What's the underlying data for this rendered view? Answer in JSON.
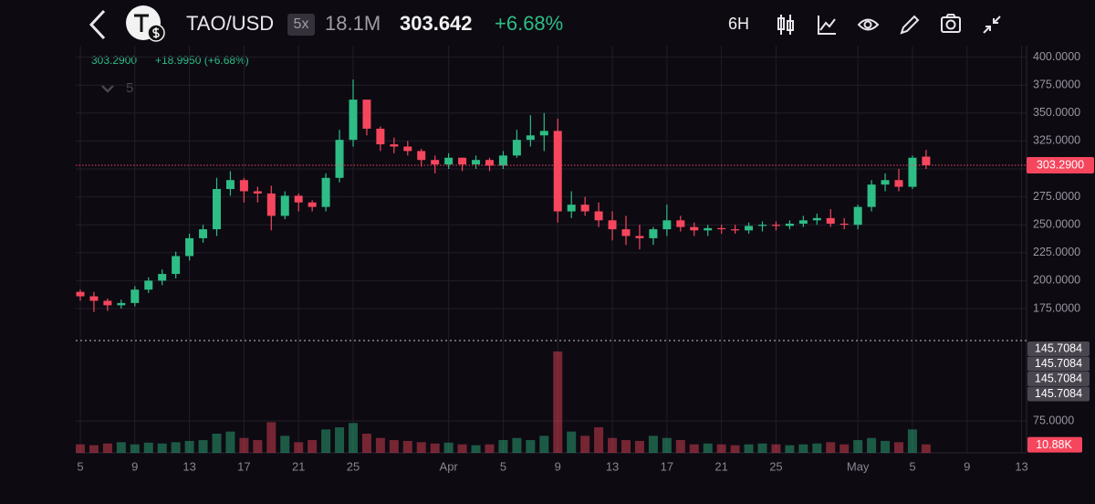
{
  "header": {
    "symbol": "TAO/USD",
    "leverage": "5x",
    "volume": "18.1M",
    "price": "303.642",
    "change": "+6.68%",
    "interval": "6H"
  },
  "info": {
    "close": "303.2900",
    "change": "+18.9950 (+6.68%)",
    "collapsed_count": "5"
  },
  "chart_data": {
    "type": "candlestick",
    "categories": [
      "5",
      null,
      null,
      null,
      "9",
      null,
      null,
      null,
      "13",
      null,
      null,
      null,
      "17",
      null,
      null,
      null,
      "21",
      null,
      null,
      null,
      "25",
      null,
      null,
      null,
      null,
      null,
      null,
      "Apr",
      null,
      null,
      null,
      "5",
      null,
      null,
      null,
      "9",
      null,
      null,
      null,
      "13",
      null,
      null,
      null,
      "17",
      null,
      null,
      null,
      "21",
      null,
      null,
      null,
      "25",
      null,
      null,
      null,
      null,
      null,
      "May",
      null,
      null,
      null,
      "5",
      null,
      null,
      null,
      "9",
      null,
      null,
      null,
      "13"
    ],
    "open": [
      190,
      186,
      182,
      178,
      180,
      192,
      200,
      206,
      222,
      238,
      246,
      282,
      290,
      280,
      278,
      258,
      276,
      270,
      266,
      292,
      326,
      362,
      336,
      322,
      320,
      316,
      308,
      304,
      310,
      304,
      308,
      303,
      312,
      326,
      330,
      334,
      262,
      268,
      262,
      254,
      246,
      240,
      238,
      246,
      254,
      248,
      245,
      247,
      246,
      245,
      249,
      250,
      249,
      251,
      254,
      256,
      251,
      250,
      266,
      286,
      290,
      284,
      311,
      null,
      null,
      null,
      null,
      null,
      null,
      null
    ],
    "high": [
      192,
      190,
      184,
      183,
      195,
      203,
      210,
      226,
      242,
      250,
      292,
      298,
      292,
      284,
      285,
      280,
      278,
      272,
      296,
      335,
      380,
      360,
      338,
      328,
      325,
      318,
      312,
      314,
      310,
      312,
      310,
      316,
      335,
      348,
      350,
      345,
      280,
      275,
      270,
      262,
      258,
      250,
      248,
      268,
      258,
      252,
      250,
      250,
      250,
      252,
      253,
      253,
      254,
      258,
      260,
      264,
      256,
      268,
      290,
      296,
      300,
      312,
      317,
      null,
      null,
      null,
      null,
      null,
      null,
      null
    ],
    "low": [
      182,
      172,
      173,
      175,
      177,
      189,
      196,
      202,
      218,
      234,
      240,
      276,
      270,
      270,
      245,
      255,
      262,
      262,
      262,
      288,
      320,
      330,
      316,
      314,
      312,
      302,
      296,
      300,
      298,
      300,
      298,
      300,
      310,
      320,
      316,
      252,
      256,
      258,
      248,
      236,
      232,
      228,
      232,
      240,
      244,
      240,
      240,
      242,
      242,
      242,
      244,
      245,
      246,
      248,
      250,
      248,
      246,
      246,
      262,
      280,
      280,
      282,
      300,
      null,
      null,
      null,
      null,
      null,
      null,
      null
    ],
    "close": [
      186,
      182,
      178,
      180,
      192,
      200,
      206,
      222,
      238,
      246,
      282,
      290,
      280,
      278,
      258,
      276,
      270,
      266,
      292,
      326,
      362,
      336,
      322,
      320,
      316,
      308,
      304,
      310,
      304,
      308,
      303,
      312,
      326,
      330,
      334,
      262,
      268,
      262,
      254,
      246,
      240,
      238,
      246,
      254,
      248,
      245,
      247,
      246,
      245,
      249,
      250,
      249,
      251,
      254,
      256,
      251,
      250,
      266,
      286,
      290,
      284,
      310,
      303.29,
      null,
      null,
      null,
      null,
      null,
      null,
      null
    ],
    "volume": [
      20,
      18,
      22,
      25,
      20,
      24,
      22,
      25,
      28,
      30,
      45,
      50,
      35,
      30,
      72,
      40,
      25,
      30,
      55,
      60,
      70,
      45,
      35,
      30,
      28,
      25,
      22,
      24,
      20,
      18,
      20,
      30,
      35,
      30,
      40,
      238,
      50,
      40,
      60,
      35,
      30,
      28,
      40,
      35,
      30,
      20,
      22,
      20,
      18,
      20,
      22,
      20,
      18,
      20,
      22,
      25,
      20,
      30,
      35,
      28,
      25,
      55,
      20,
      null,
      null,
      null,
      null,
      null,
      null,
      null
    ],
    "up_color": "#2ebd85",
    "down_color": "#f6465d",
    "ylim": [
      150,
      400
    ],
    "yticks": [
      {
        "value": 400,
        "label": "400.0000"
      },
      {
        "value": 375,
        "label": "375.0000"
      },
      {
        "value": 350,
        "label": "350.0000"
      },
      {
        "value": 325,
        "label": "325.0000"
      },
      {
        "value": 300,
        "label": "300.0000"
      },
      {
        "value": 275,
        "label": "275.0000"
      },
      {
        "value": 250,
        "label": "250.0000"
      },
      {
        "value": 225,
        "label": "225.0000"
      },
      {
        "value": 200,
        "label": "200.0000"
      },
      {
        "value": 175,
        "label": "175.0000"
      }
    ],
    "y2lim": [
      0,
      250
    ],
    "y2ticks": [
      {
        "value": 75,
        "label": "75.0000"
      }
    ],
    "grid": true,
    "last_price_label": "303.2900",
    "volume_label": "10.88K",
    "overlay_labels": [
      "145.7084",
      "145.7084",
      "145.7084",
      "145.7084"
    ]
  }
}
